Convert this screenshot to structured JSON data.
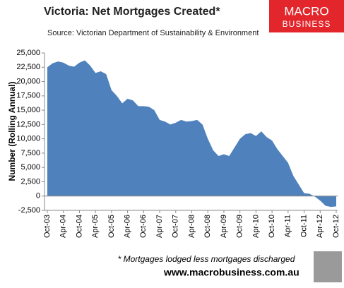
{
  "chart_data": {
    "type": "area",
    "title": "Victoria: Net Mortgages Created*",
    "subtitle": "Source: Victorian Department of Sustainability & Environment",
    "logo": [
      "MACRO",
      "BUSINESS"
    ],
    "y_label": "Number (Rolling Annual)",
    "note": "* Mortgages lodged less mortgages discharged",
    "website": "www.macrobusiness.com.au",
    "color": "#4f81bd",
    "categories": [
      "Oct-03",
      null,
      null,
      "Apr-04",
      null,
      null,
      "Oct-04",
      null,
      null,
      "Apr-05",
      null,
      null,
      "Oct-05",
      null,
      null,
      "Apr-06",
      null,
      null,
      "Oct-06",
      null,
      null,
      "Apr-07",
      null,
      null,
      "Oct-07",
      null,
      null,
      "Apr-08",
      null,
      null,
      "Oct-08",
      null,
      null,
      "Apr-09",
      null,
      null,
      "Oct-09",
      null,
      null,
      "Apr-10",
      null,
      null,
      "Oct-10",
      null,
      null,
      "Apr-11",
      null,
      null,
      "Oct-11",
      null,
      null,
      "Apr-12",
      null,
      null,
      "Oct-12"
    ],
    "values": [
      22500,
      23200,
      23500,
      23300,
      22800,
      22600,
      23300,
      23700,
      22800,
      21500,
      21800,
      21300,
      18500,
      17500,
      16200,
      17000,
      16700,
      15700,
      15700,
      15600,
      15000,
      13300,
      13000,
      12500,
      12800,
      13300,
      13000,
      13100,
      13300,
      12500,
      10000,
      8000,
      7000,
      7300,
      7000,
      8500,
      10000,
      10800,
      11000,
      10500,
      11300,
      10300,
      9700,
      8200,
      7000,
      5800,
      3500,
      2000,
      500,
      400,
      -100,
      -800,
      -1700,
      -1900,
      -1800
    ],
    "ylim": [
      -2500,
      25000
    ],
    "yticks": [
      {
        "value": -2500,
        "label": "-2,500"
      },
      0,
      {
        "value": 2500,
        "label": "2,500"
      },
      {
        "value": 5000,
        "label": "5,000"
      },
      {
        "value": 7500,
        "label": "7,500"
      },
      {
        "value": 10000,
        "label": "10,000"
      },
      {
        "value": 12500,
        "label": "12,500"
      },
      {
        "value": 15000,
        "label": "15,000"
      },
      {
        "value": 17500,
        "label": "17,500"
      },
      {
        "value": 20000,
        "label": "20,000"
      },
      {
        "value": 22500,
        "label": "22,500"
      },
      {
        "value": 25000,
        "label": "25,000"
      }
    ],
    "grid": false
  }
}
